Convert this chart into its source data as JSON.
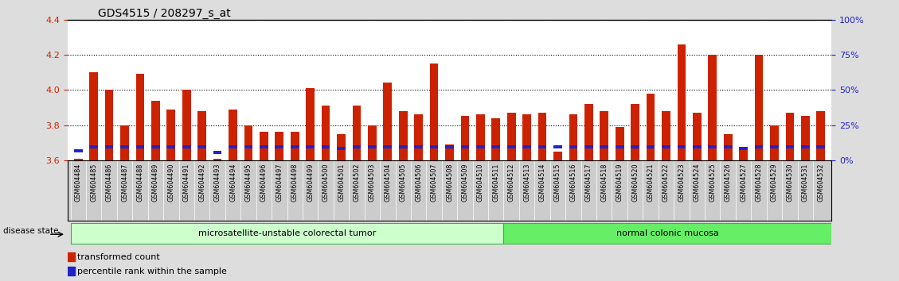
{
  "title": "GDS4515 / 208297_s_at",
  "samples": [
    "GSM604484",
    "GSM604485",
    "GSM604486",
    "GSM604487",
    "GSM604488",
    "GSM604489",
    "GSM604490",
    "GSM604491",
    "GSM604492",
    "GSM604493",
    "GSM604494",
    "GSM604495",
    "GSM604496",
    "GSM604497",
    "GSM604498",
    "GSM604499",
    "GSM604500",
    "GSM604501",
    "GSM604502",
    "GSM604503",
    "GSM604504",
    "GSM604505",
    "GSM604506",
    "GSM604507",
    "GSM604508",
    "GSM604509",
    "GSM604510",
    "GSM604511",
    "GSM604512",
    "GSM604513",
    "GSM604514",
    "GSM604515",
    "GSM604516",
    "GSM604517",
    "GSM604518",
    "GSM604519",
    "GSM604520",
    "GSM604521",
    "GSM604522",
    "GSM604523",
    "GSM604524",
    "GSM604525",
    "GSM604526",
    "GSM604527",
    "GSM604528",
    "GSM604529",
    "GSM604530",
    "GSM604531",
    "GSM604532"
  ],
  "red_values": [
    3.61,
    4.1,
    4.0,
    3.8,
    4.09,
    3.94,
    3.89,
    4.0,
    3.88,
    3.61,
    3.89,
    3.8,
    3.76,
    3.76,
    3.76,
    4.01,
    3.91,
    3.75,
    3.91,
    3.8,
    4.04,
    3.88,
    3.86,
    4.15,
    3.69,
    3.85,
    3.86,
    3.84,
    3.87,
    3.86,
    3.87,
    3.65,
    3.86,
    3.92,
    3.88,
    3.79,
    3.92,
    3.98,
    3.88,
    4.26,
    3.87,
    4.2,
    3.75,
    3.67,
    4.2,
    3.8,
    3.87,
    3.85,
    3.88
  ],
  "blue_positions": [
    3.645,
    3.665,
    3.665,
    3.665,
    3.665,
    3.665,
    3.665,
    3.665,
    3.665,
    3.635,
    3.665,
    3.665,
    3.665,
    3.665,
    3.665,
    3.665,
    3.665,
    3.66,
    3.665,
    3.665,
    3.665,
    3.665,
    3.665,
    3.665,
    3.665,
    3.665,
    3.665,
    3.665,
    3.665,
    3.665,
    3.665,
    3.665,
    3.665,
    3.665,
    3.665,
    3.665,
    3.665,
    3.665,
    3.665,
    3.665,
    3.665,
    3.665,
    3.665,
    3.66,
    3.665,
    3.665,
    3.665,
    3.665,
    3.665
  ],
  "disease_groups": [
    {
      "label": "microsatellite-unstable colorectal tumor",
      "start": 0,
      "end": 28,
      "color": "#ccffcc",
      "edge": "#44aa44"
    },
    {
      "label": "normal colonic mucosa",
      "start": 28,
      "end": 49,
      "color": "#66ee66",
      "edge": "#44aa44"
    }
  ],
  "ylim_left": [
    3.6,
    4.4
  ],
  "ylim_right": [
    0,
    100
  ],
  "yticks_left": [
    3.6,
    3.8,
    4.0,
    4.2,
    4.4
  ],
  "yticks_right": [
    0,
    25,
    50,
    75,
    100
  ],
  "ytick_labels_right": [
    "0%",
    "25%",
    "50%",
    "75%",
    "100%"
  ],
  "bar_color_red": "#cc2200",
  "bar_color_blue": "#2222cc",
  "bar_width": 0.55,
  "base_value": 3.6,
  "disease_state_label": "disease state",
  "legend_items": [
    "transformed count",
    "percentile rank within the sample"
  ],
  "background_color": "#dddddd",
  "plot_bg_color": "#ffffff",
  "xtick_bg_color": "#cccccc"
}
